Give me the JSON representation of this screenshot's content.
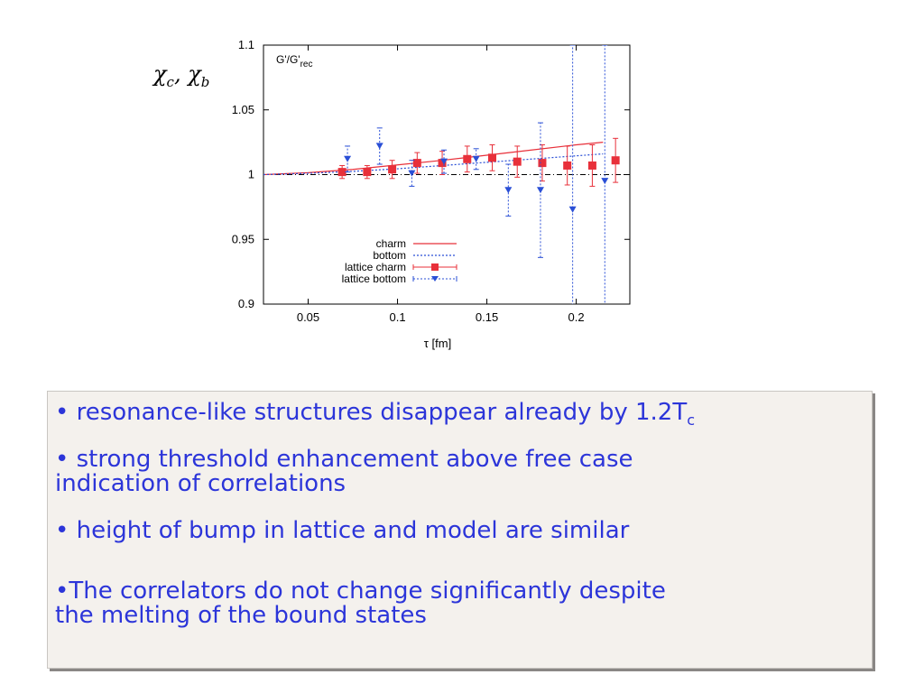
{
  "chart_data": {
    "type": "scatter",
    "annotation": "G'/G'rec",
    "annotation_main": "G'/G'",
    "annotation_sub": "rec",
    "ylabel_parts": [
      "χ",
      "c",
      ", ",
      "χ",
      "b"
    ],
    "xlabel": "τ [fm]",
    "xlim": [
      0.025,
      0.23
    ],
    "ylim": [
      0.9,
      1.1
    ],
    "xticks": [
      0.05,
      0.1,
      0.15,
      0.2
    ],
    "xtick_labels": [
      "0.05",
      "0.1",
      "0.15",
      "0.2"
    ],
    "yticks": [
      0.9,
      0.95,
      1.0,
      1.05,
      1.1
    ],
    "ytick_labels": [
      "0.9",
      "0.95",
      "1",
      "1.05",
      "1.1"
    ],
    "reference_line": 1.0,
    "legend_position": "bottom-center",
    "series": [
      {
        "name": "charm",
        "kind": "line",
        "color": "#e8303a",
        "x": [
          0.025,
          0.05,
          0.075,
          0.1,
          0.125,
          0.15,
          0.175,
          0.2,
          0.215
        ],
        "y": [
          1.0,
          1.0015,
          1.004,
          1.0075,
          1.011,
          1.015,
          1.019,
          1.023,
          1.025
        ]
      },
      {
        "name": "bottom",
        "kind": "line",
        "dashed": true,
        "color": "#2a4fd6",
        "x": [
          0.025,
          0.05,
          0.075,
          0.1,
          0.125,
          0.15,
          0.175,
          0.2,
          0.215
        ],
        "y": [
          1.0,
          1.001,
          1.0025,
          1.0045,
          1.007,
          1.0095,
          1.012,
          1.0145,
          1.016
        ]
      },
      {
        "name": "lattice charm",
        "kind": "points",
        "marker": "square",
        "color": "#e8303a",
        "x": [
          0.069,
          0.083,
          0.097,
          0.111,
          0.125,
          0.139,
          0.153,
          0.167,
          0.181,
          0.195,
          0.209,
          0.222
        ],
        "y": [
          1.002,
          1.002,
          1.004,
          1.009,
          1.009,
          1.012,
          1.013,
          1.01,
          1.009,
          1.007,
          1.007,
          1.011
        ],
        "err": [
          0.005,
          0.005,
          0.007,
          0.008,
          0.009,
          0.01,
          0.01,
          0.012,
          0.014,
          0.015,
          0.016,
          0.017
        ]
      },
      {
        "name": "lattice bottom",
        "kind": "points",
        "marker": "triangle-down",
        "color": "#2a4fd6",
        "x": [
          0.072,
          0.09,
          0.108,
          0.126,
          0.144,
          0.162,
          0.18,
          0.198,
          0.216
        ],
        "y": [
          1.012,
          1.022,
          1.001,
          1.01,
          1.012,
          0.988,
          0.988,
          0.973,
          0.995
        ],
        "err": [
          0.01,
          0.014,
          0.01,
          0.009,
          0.008,
          0.02,
          0.052,
          0.127,
          0.105
        ]
      }
    ]
  },
  "notes": {
    "line1_main": "• resonance-like structures disappear already by 1.2T",
    "line1_sub": "c",
    "line2a": "• strong threshold enhancement above free case",
    "line2b": "indication of correlations",
    "line3": "• height of bump in lattice and model are similar",
    "line4a": "•The correlators do not change significantly despite",
    "line4b": "the melting of the bound states"
  },
  "colors": {
    "text_blue": "#2c35d9",
    "panel_bg": "#f4f1ed",
    "charm": "#e8303a",
    "bottom": "#2a4fd6"
  }
}
